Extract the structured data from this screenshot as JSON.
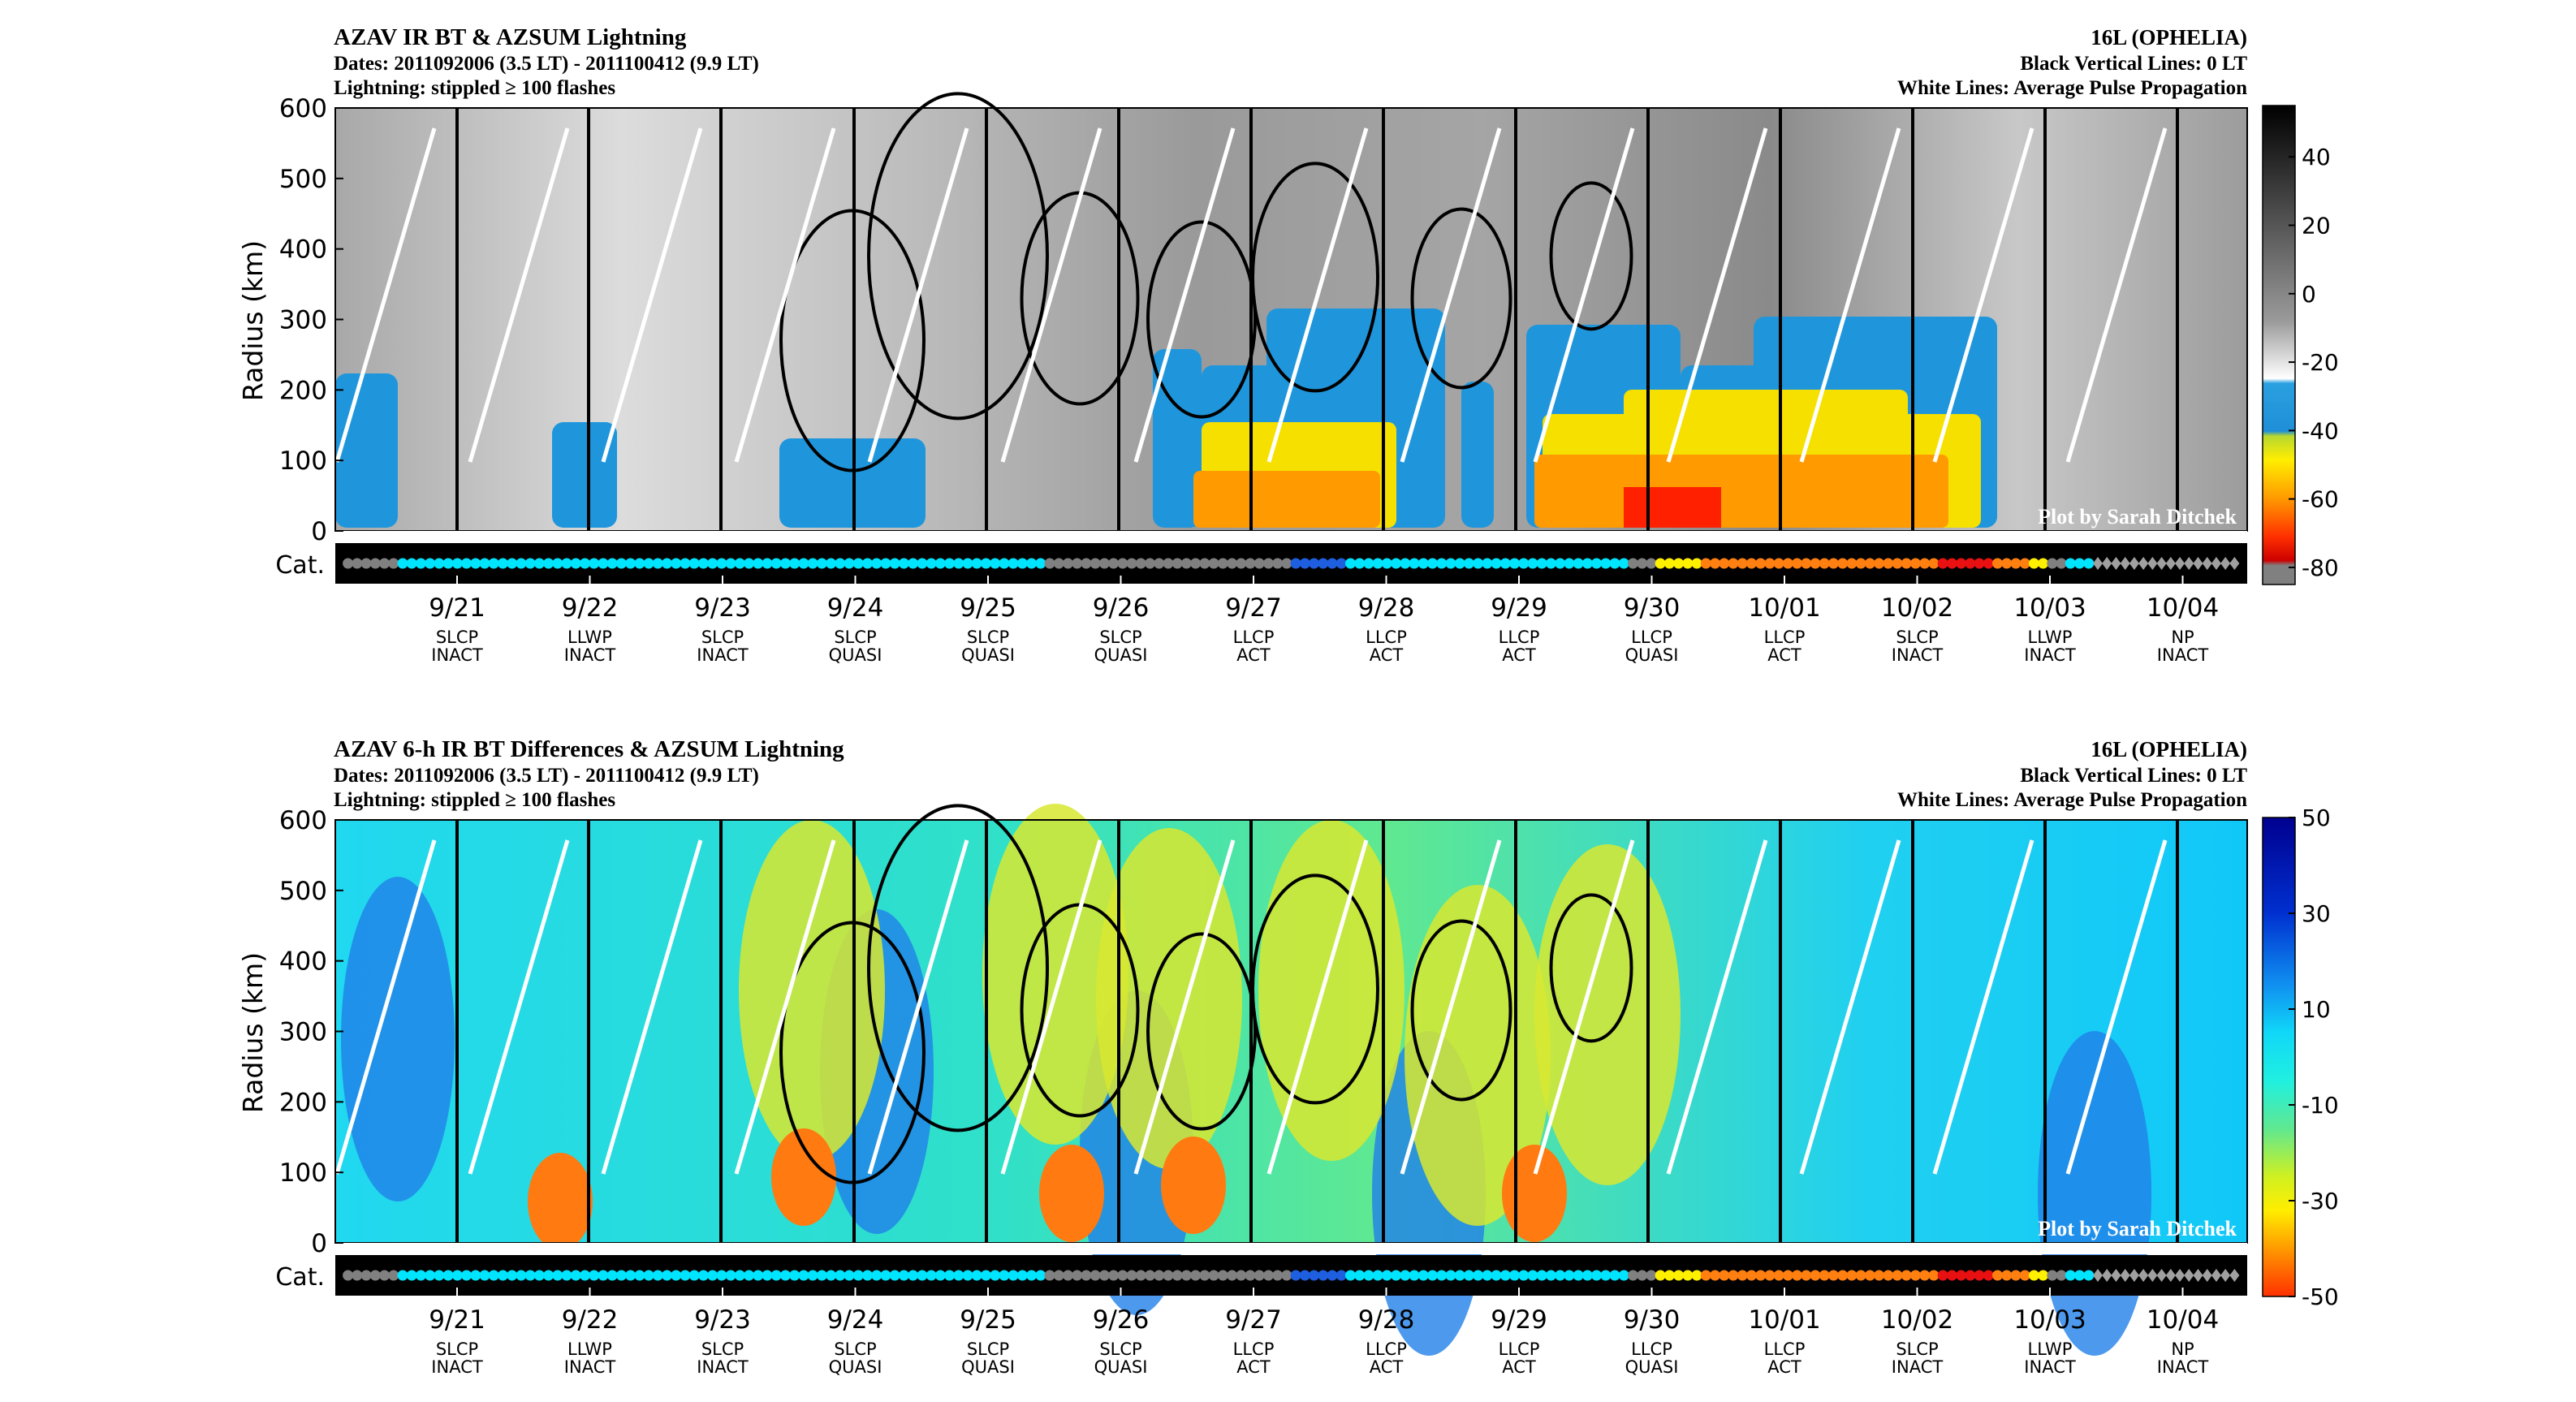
{
  "chart_data": [
    {
      "type": "heatmap",
      "title": "AZAV IR BT & AZSUM Lightning",
      "subtitle_lines": [
        "Dates: 2011092006 (3.5 LT) - 2011100412 (9.9 LT)",
        "Lightning: stippled ≥ 100 flashes"
      ],
      "right_lines": [
        "16L (OPHELIA)",
        "Black Vertical Lines: 0 LT",
        "White Lines: Average Pulse Propagation"
      ],
      "ylabel": "Radius (km)",
      "yticks": [
        "0",
        "100",
        "200",
        "300",
        "400",
        "500",
        "600"
      ],
      "ylim": [
        0,
        600
      ],
      "colorbar_ticks": [
        "40",
        "20",
        "0",
        "-20",
        "-40",
        "-60",
        "-80"
      ],
      "colorbar_range": [
        -85,
        55
      ],
      "cat_label": "Cat.",
      "watermark": "Plot by Sarah Ditchek"
    },
    {
      "type": "heatmap",
      "title": "AZAV 6-h IR BT Differences & AZSUM Lightning",
      "subtitle_lines": [
        "Dates: 2011092006 (3.5 LT) - 2011100412 (9.9 LT)",
        "Lightning: stippled ≥ 100 flashes"
      ],
      "right_lines": [
        "16L (OPHELIA)",
        "Black Vertical Lines: 0 LT",
        "White Lines: Average Pulse Propagation"
      ],
      "ylabel": "Radius (km)",
      "yticks": [
        "0",
        "100",
        "200",
        "300",
        "400",
        "500",
        "600"
      ],
      "ylim": [
        0,
        600
      ],
      "colorbar_ticks": [
        "50",
        "30",
        "10",
        "-10",
        "-30",
        "-50"
      ],
      "colorbar_range": [
        -50,
        50
      ],
      "cat_label": "Cat.",
      "watermark": "Plot by Sarah Ditchek"
    }
  ],
  "dates": [
    {
      "date": "9/21",
      "stage": "SLCP",
      "state": "INACT"
    },
    {
      "date": "9/22",
      "stage": "LLWP",
      "state": "INACT"
    },
    {
      "date": "9/23",
      "stage": "SLCP",
      "state": "INACT"
    },
    {
      "date": "9/24",
      "stage": "SLCP",
      "state": "QUASI"
    },
    {
      "date": "9/25",
      "stage": "SLCP",
      "state": "QUASI"
    },
    {
      "date": "9/26",
      "stage": "SLCP",
      "state": "QUASI"
    },
    {
      "date": "9/27",
      "stage": "LLCP",
      "state": "ACT"
    },
    {
      "date": "9/28",
      "stage": "LLCP",
      "state": "ACT"
    },
    {
      "date": "9/29",
      "stage": "LLCP",
      "state": "ACT"
    },
    {
      "date": "9/30",
      "stage": "LLCP",
      "state": "QUASI"
    },
    {
      "date": "10/01",
      "stage": "LLCP",
      "state": "ACT"
    },
    {
      "date": "10/02",
      "stage": "SLCP",
      "state": "INACT"
    },
    {
      "date": "10/03",
      "stage": "LLWP",
      "state": "INACT"
    },
    {
      "date": "10/04",
      "stage": "NP",
      "state": "INACT"
    }
  ],
  "category_colors": {
    "gray": "#808080",
    "cyan": "#00E5FF",
    "blue": "#1E5FE0",
    "green": "#40E090",
    "yellow": "#FFF000",
    "orange": "#FF7F10",
    "red": "#E81010",
    "diamond": "#A0A0A0"
  },
  "category_sequence": "ggggggcccccccccccccccccccccccccccccccccccccccccccccccccccccccccccccccccccccccgggggggggggggggggggggggggggbbbbbbcccccccccccccccccccccccccccccccgggyyyyyoooooooooooooooooooooooooorrrrrrooooyyggcccdddddddddddddddd"
}
